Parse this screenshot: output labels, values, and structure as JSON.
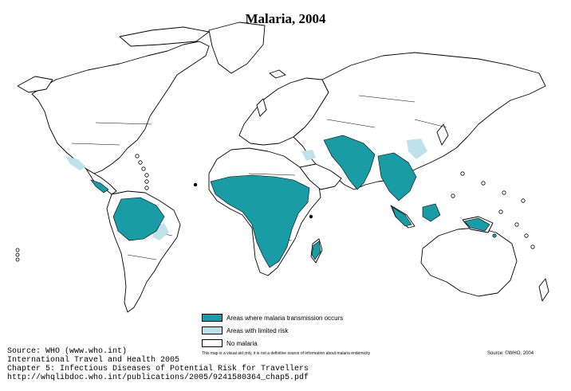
{
  "title": "Malaria, 2004",
  "colors": {
    "transmission": "#199ca5",
    "limited": "#bfe2ea",
    "none": "#ffffff"
  },
  "legend": [
    {
      "label": "Areas where malaria transmission occurs",
      "color": "#199ca5"
    },
    {
      "label": "Areas with limited risk",
      "color": "#bfe2ea"
    },
    {
      "label": "No malaria",
      "color": "#ffffff"
    }
  ],
  "disclaimer": "This map is a visual aid only, it is not a definitive source of information about malaria endemicity",
  "credit": "Source: ©WHO, 2004",
  "source_lines": [
    "Source: WHO (www.who.int)",
    "International Travel and Health 2005",
    "Chapter 5: Infectious Diseases of Potential Risk for Travellers",
    "http://whqlibdoc.who.int/publications/2005/9241580364_chap5.pdf"
  ]
}
